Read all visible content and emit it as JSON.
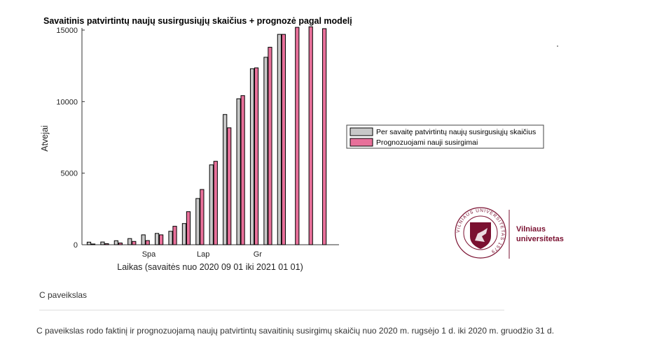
{
  "chart_data": {
    "type": "bar",
    "title": "Savaitinis patvirtintų naujų susirgusiųjų skaičius + prognozė pagal modelį",
    "xlabel": "Laikas (savaitės nuo 2020 09 01 iki 2021 01 01)",
    "ylabel": "Atvejai",
    "ylim": [
      0,
      15000
    ],
    "yticks": [
      0,
      5000,
      10000,
      15000
    ],
    "xtick_labels": [
      {
        "label": "Spa",
        "week": 5
      },
      {
        "label": "Lap",
        "week": 9
      },
      {
        "label": "Gr",
        "week": 13
      }
    ],
    "weeks": [
      1,
      2,
      3,
      4,
      5,
      6,
      7,
      8,
      9,
      10,
      11,
      12,
      13,
      14,
      15,
      16,
      17,
      18
    ],
    "legend_position": "right",
    "series": [
      {
        "name": "Per savaitę patvirtintų naujų susirgusiųjų skaičius",
        "color": "#c8c8c8",
        "values": [
          180,
          190,
          280,
          430,
          690,
          790,
          940,
          1480,
          3230,
          5580,
          9100,
          10200,
          12300,
          13100,
          14700,
          null,
          null,
          null
        ]
      },
      {
        "name": "Prognozuojami nauji susirgimai",
        "color": "#e8709a",
        "values": [
          50,
          70,
          120,
          230,
          290,
          690,
          1290,
          2310,
          3860,
          5830,
          8170,
          10420,
          12360,
          13800,
          14700,
          15190,
          15230,
          15100
        ]
      }
    ]
  },
  "logo": {
    "name": "Vilniaus universitetas",
    "seal_text": "VILNIAUS UNIVERSITETAS 1579",
    "line1": "Vilniaus",
    "line2": "universitetas",
    "color": "#7a1030"
  },
  "caption": "C paveikslas",
  "description": "C paveikslas rodo faktinį ir prognozuojamą naujų patvirtintų savaitinių susirgimų skaičių nuo 2020 m. rugsėjo 1 d. iki 2020 m. gruodžio 31 d."
}
